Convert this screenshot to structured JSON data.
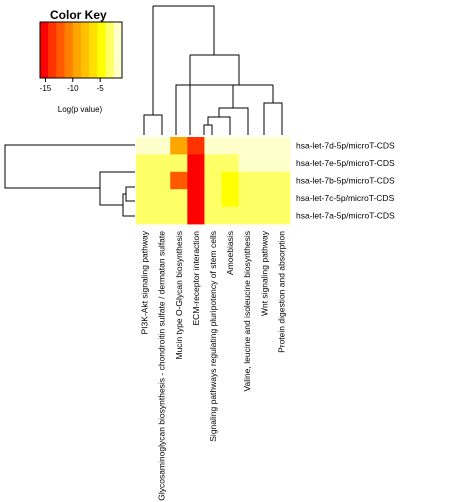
{
  "chart_data": {
    "type": "heatmap",
    "color_key": {
      "title": "Color Key",
      "ticks": [
        "-15",
        "-10",
        "-5"
      ],
      "tick_values": [
        -15,
        -10,
        -5
      ],
      "range": [
        -16,
        -1
      ],
      "xlabel": "Log(p value)",
      "colors": [
        "#ff0000",
        "#ff3300",
        "#ff5a00",
        "#ff8000",
        "#ffa500",
        "#ffc200",
        "#ffe000",
        "#ffff00",
        "#ffff66",
        "#ffffcc"
      ]
    },
    "rows": [
      "hsa-let-7d-5p/microT-CDS",
      "hsa-let-7e-5p/microT-CDS",
      "hsa-let-7b-5p/microT-CDS",
      "hsa-let-7c-5p/microT-CDS",
      "hsa-let-7a-5p/microT-CDS"
    ],
    "columns": [
      "PI3K-Akt signaling pathway",
      "Glycosaminoglycan biosynthesis - chondroitin sulfate / dermatan sulfate",
      "Mucin type O-Glycan biosynthesis",
      "ECM-receptor interaction",
      "Signaling pathways regulating pluripotency of stem cells",
      "Amoebiasis",
      "Valine, leucine and isoleucine biosynthesis",
      "Wnt signaling pathway",
      "Protein digestion and absorption"
    ],
    "values": [
      [
        -1,
        -1,
        -9,
        -14,
        -2,
        -1,
        -1,
        -1,
        -1
      ],
      [
        -4,
        -3,
        -4,
        -16,
        -3,
        -4,
        -1,
        -1,
        -1
      ],
      [
        -4,
        -3,
        -13,
        -16,
        -4,
        -5,
        -3,
        -3,
        -3
      ],
      [
        -4,
        -4,
        -4,
        -16,
        -4,
        -5,
        -3,
        -3,
        -4
      ],
      [
        -4,
        -3,
        -4,
        -16,
        -4,
        -4,
        -3,
        -3,
        -3
      ]
    ],
    "legend_placement": "top-left"
  }
}
